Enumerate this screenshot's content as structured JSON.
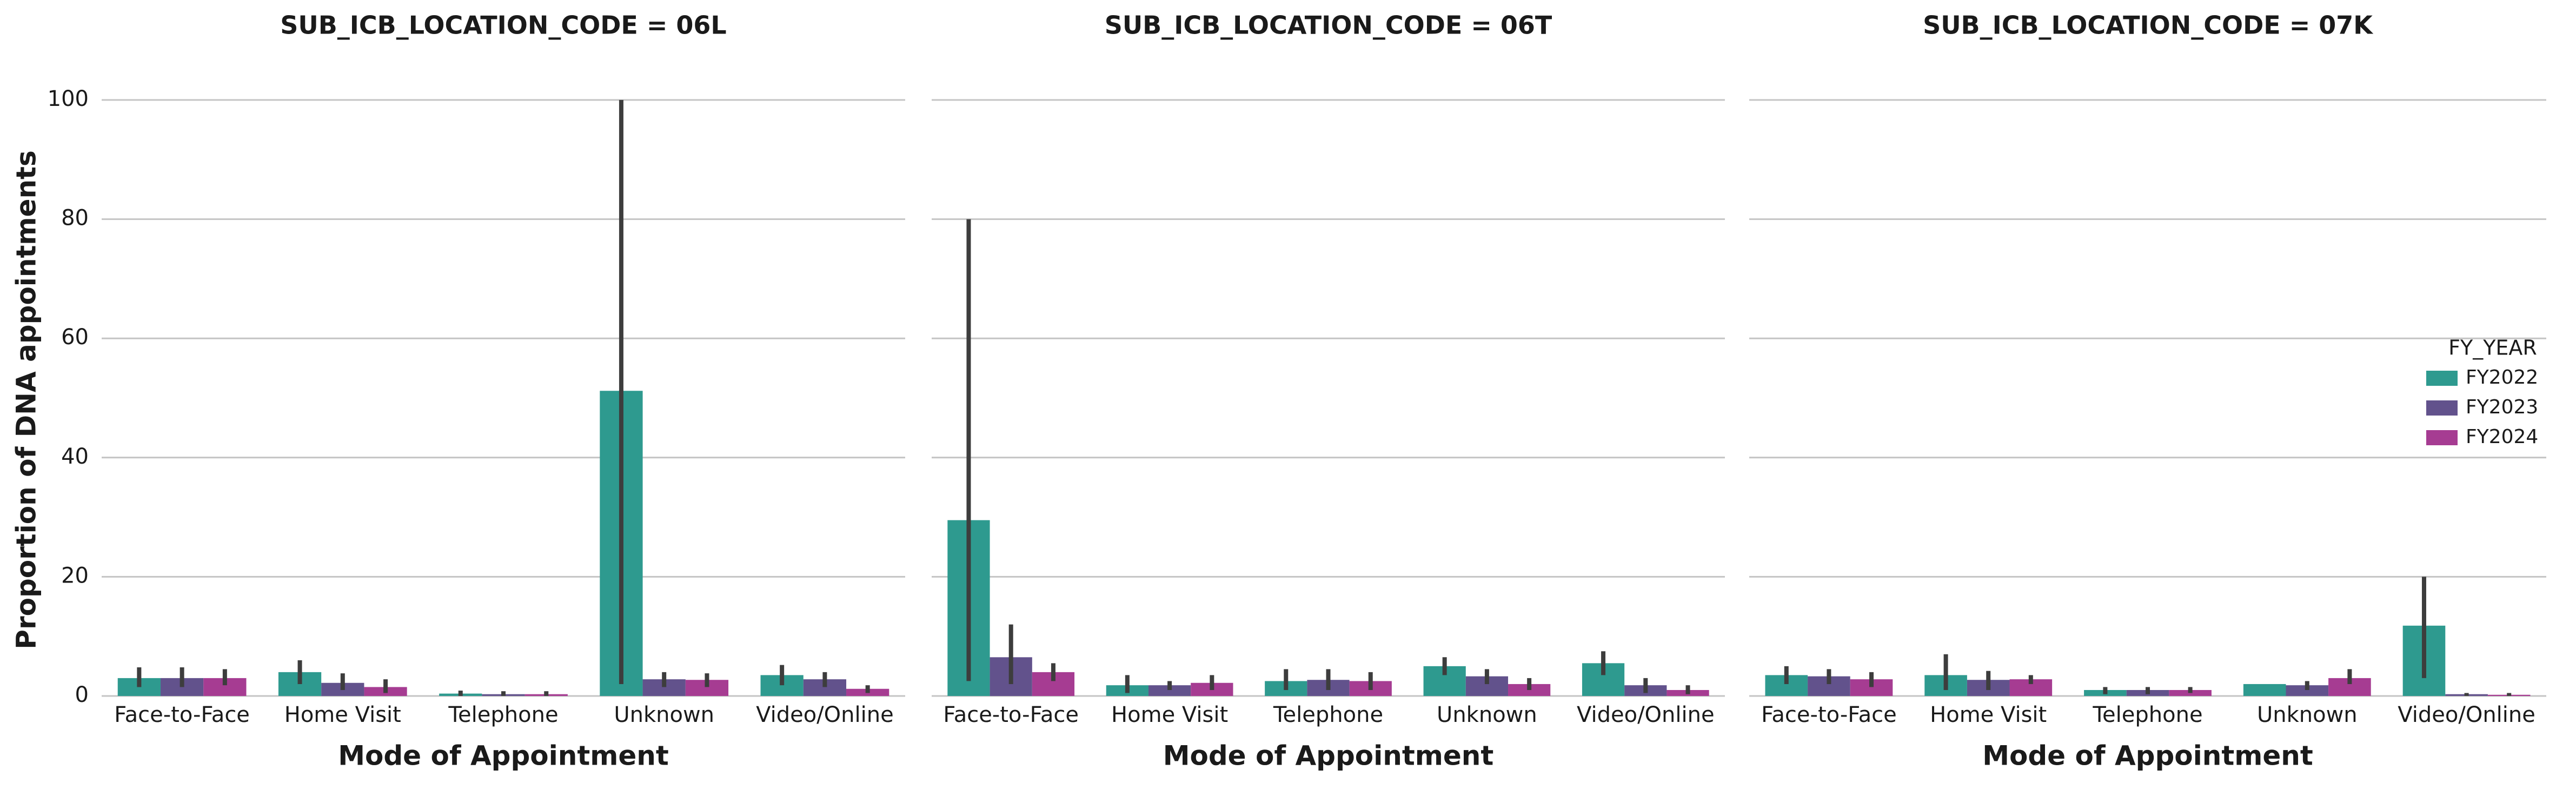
{
  "chart_data": [
    {
      "type": "bar",
      "title": "SUB_ICB_LOCATION_CODE = 06L",
      "xlabel": "Mode of Appointment",
      "ylabel": "Proportion of DNA appointments",
      "categories": [
        "Face-to-Face",
        "Home Visit",
        "Telephone",
        "Unknown",
        "Video/Online"
      ],
      "ylim": [
        0,
        100
      ],
      "yticks": [
        0,
        20,
        40,
        60,
        80,
        100
      ],
      "grid": true,
      "series": [
        {
          "values": [
            3.0,
            4.0,
            0.4,
            51.2,
            3.5
          ],
          "err_low": [
            1.5,
            2.0,
            0.0,
            2.0,
            1.8
          ],
          "err_high": [
            4.8,
            6.0,
            0.9,
            100,
            5.2
          ]
        },
        {
          "values": [
            3.0,
            2.2,
            0.3,
            2.8,
            2.8
          ],
          "err_low": [
            1.5,
            1.0,
            0.0,
            1.5,
            1.5
          ],
          "err_high": [
            4.8,
            3.8,
            0.8,
            4.0,
            4.0
          ]
        },
        {
          "values": [
            3.0,
            1.5,
            0.3,
            2.7,
            1.2
          ],
          "err_low": [
            1.8,
            0.5,
            0.0,
            1.5,
            0.5
          ],
          "err_high": [
            4.5,
            2.8,
            0.8,
            3.8,
            1.8
          ]
        }
      ]
    },
    {
      "type": "bar",
      "title": "SUB_ICB_LOCATION_CODE = 06T",
      "xlabel": "Mode of Appointment",
      "categories": [
        "Face-to-Face",
        "Home Visit",
        "Telephone",
        "Unknown",
        "Video/Online"
      ],
      "ylim": [
        0,
        100
      ],
      "yticks": [
        0,
        20,
        40,
        60,
        80,
        100
      ],
      "grid": true,
      "series": [
        {
          "values": [
            29.5,
            1.8,
            2.5,
            5.0,
            5.5
          ],
          "err_low": [
            2.5,
            0.5,
            1.0,
            3.5,
            3.5
          ],
          "err_high": [
            80,
            3.5,
            4.5,
            6.5,
            7.5
          ]
        },
        {
          "values": [
            6.5,
            1.8,
            2.7,
            3.3,
            1.8
          ],
          "err_low": [
            2.0,
            1.0,
            1.0,
            2.0,
            0.5
          ],
          "err_high": [
            12,
            2.5,
            4.5,
            4.5,
            3.0
          ]
        },
        {
          "values": [
            4.0,
            2.2,
            2.5,
            2.0,
            1.0
          ],
          "err_low": [
            2.5,
            1.0,
            1.0,
            1.0,
            0.3
          ],
          "err_high": [
            5.5,
            3.5,
            4.0,
            3.0,
            1.8
          ]
        }
      ]
    },
    {
      "type": "bar",
      "title": "SUB_ICB_LOCATION_CODE = 07K",
      "xlabel": "Mode of Appointment",
      "categories": [
        "Face-to-Face",
        "Home Visit",
        "Telephone",
        "Unknown",
        "Video/Online"
      ],
      "ylim": [
        0,
        100
      ],
      "yticks": [
        0,
        20,
        40,
        60,
        80,
        100
      ],
      "grid": true,
      "series": [
        {
          "values": [
            3.5,
            3.5,
            1.0,
            2.0,
            11.8
          ],
          "err_low": [
            2.0,
            1.0,
            0.3,
            2.0,
            3.0
          ],
          "err_high": [
            5.0,
            7.0,
            1.5,
            2.0,
            20
          ]
        },
        {
          "values": [
            3.3,
            2.7,
            1.0,
            1.8,
            0.3
          ],
          "err_low": [
            2.0,
            1.0,
            0.3,
            1.0,
            0.0
          ],
          "err_high": [
            4.5,
            4.2,
            1.5,
            2.5,
            0.5
          ]
        },
        {
          "values": [
            2.8,
            2.8,
            1.0,
            3.0,
            0.2
          ],
          "err_low": [
            1.5,
            2.0,
            0.5,
            2.0,
            0.0
          ],
          "err_high": [
            4.0,
            3.5,
            1.5,
            4.5,
            0.5
          ]
        }
      ]
    }
  ],
  "legend": {
    "title": "FY_YEAR",
    "position": "right",
    "names": [
      "FY2022",
      "FY2023",
      "FY2024"
    ],
    "colors": [
      "#2e9a8f",
      "#62528c",
      "#a63c92"
    ]
  }
}
